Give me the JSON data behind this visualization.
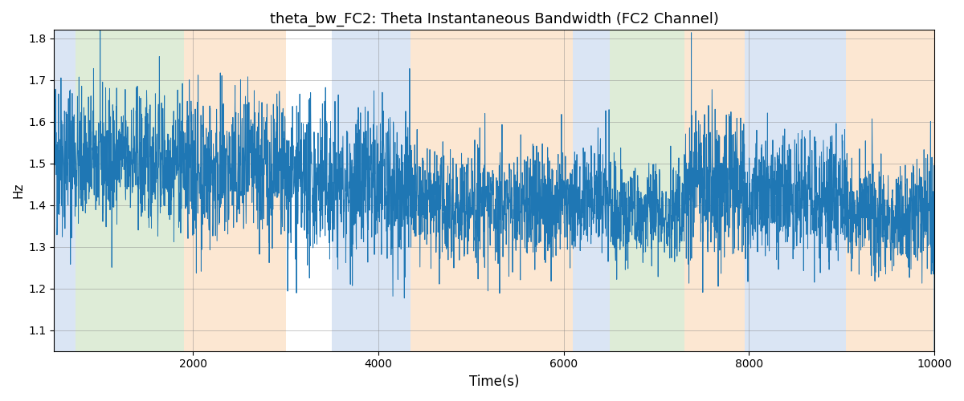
{
  "title": "theta_bw_FC2: Theta Instantaneous Bandwidth (FC2 Channel)",
  "xlabel": "Time(s)",
  "ylabel": "Hz",
  "xlim": [
    500,
    10000
  ],
  "ylim": [
    1.05,
    1.82
  ],
  "yticks": [
    1.1,
    1.2,
    1.3,
    1.4,
    1.5,
    1.6,
    1.7,
    1.8
  ],
  "xticks": [
    2000,
    4000,
    6000,
    8000,
    10000
  ],
  "line_color": "#1f77b4",
  "seed": 42,
  "n_points": 4000,
  "t_start": 500,
  "t_end": 10000,
  "background_regions": [
    {
      "start": 500,
      "end": 730,
      "color": "#aec6e8",
      "alpha": 0.45
    },
    {
      "start": 730,
      "end": 1900,
      "color": "#b6d7a8",
      "alpha": 0.45
    },
    {
      "start": 1900,
      "end": 3000,
      "color": "#f9cb9c",
      "alpha": 0.45
    },
    {
      "start": 3500,
      "end": 4350,
      "color": "#aec6e8",
      "alpha": 0.45
    },
    {
      "start": 4350,
      "end": 6100,
      "color": "#f9cb9c",
      "alpha": 0.45
    },
    {
      "start": 6100,
      "end": 6500,
      "color": "#aec6e8",
      "alpha": 0.45
    },
    {
      "start": 6500,
      "end": 7300,
      "color": "#b6d7a8",
      "alpha": 0.45
    },
    {
      "start": 7300,
      "end": 7950,
      "color": "#f9cb9c",
      "alpha": 0.45
    },
    {
      "start": 7950,
      "end": 9050,
      "color": "#aec6e8",
      "alpha": 0.45
    },
    {
      "start": 9050,
      "end": 10000,
      "color": "#f9cb9c",
      "alpha": 0.45
    }
  ],
  "segment_params": [
    {
      "t_start": 500,
      "t_end": 730,
      "mean": 1.52,
      "std": 0.1,
      "envelope": 0.06
    },
    {
      "t_start": 730,
      "t_end": 1900,
      "mean": 1.51,
      "std": 0.08,
      "envelope": 0.04
    },
    {
      "t_start": 1900,
      "t_end": 3000,
      "mean": 1.48,
      "std": 0.09,
      "envelope": 0.05
    },
    {
      "t_start": 3000,
      "t_end": 3500,
      "mean": 1.45,
      "std": 0.09,
      "envelope": 0.05
    },
    {
      "t_start": 3500,
      "t_end": 4350,
      "mean": 1.44,
      "std": 0.09,
      "envelope": 0.05
    },
    {
      "t_start": 4350,
      "t_end": 6100,
      "mean": 1.4,
      "std": 0.07,
      "envelope": 0.03
    },
    {
      "t_start": 6100,
      "t_end": 6500,
      "mean": 1.42,
      "std": 0.07,
      "envelope": 0.03
    },
    {
      "t_start": 6500,
      "t_end": 7300,
      "mean": 1.38,
      "std": 0.06,
      "envelope": 0.03
    },
    {
      "t_start": 7300,
      "t_end": 7950,
      "mean": 1.46,
      "std": 0.09,
      "envelope": 0.05
    },
    {
      "t_start": 7950,
      "t_end": 9050,
      "mean": 1.42,
      "std": 0.07,
      "envelope": 0.04
    },
    {
      "t_start": 9050,
      "t_end": 10000,
      "mean": 1.38,
      "std": 0.07,
      "envelope": 0.03
    }
  ]
}
